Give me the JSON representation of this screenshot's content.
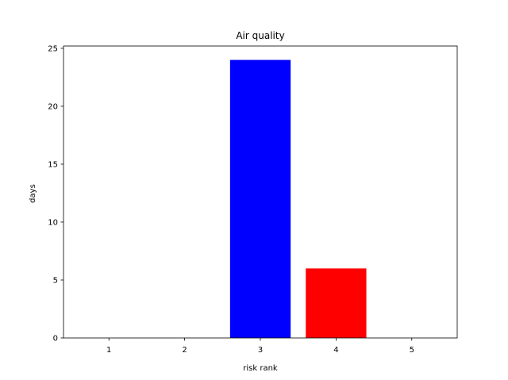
{
  "chart_data": {
    "type": "bar",
    "title": "Air quality",
    "xlabel": "risk rank",
    "ylabel": "days",
    "categories": [
      "1",
      "2",
      "3",
      "4",
      "5"
    ],
    "values": [
      0,
      0,
      24,
      6,
      0
    ],
    "bar_colors": [
      "#0000ff",
      "#0000ff",
      "#0000ff",
      "#ff0000",
      "#0000ff"
    ],
    "yticks": [
      0,
      5,
      10,
      15,
      20,
      25
    ],
    "ylim": [
      0,
      25.2
    ],
    "xlim": [
      0.4,
      5.6
    ],
    "grid": false,
    "legend": "none"
  }
}
